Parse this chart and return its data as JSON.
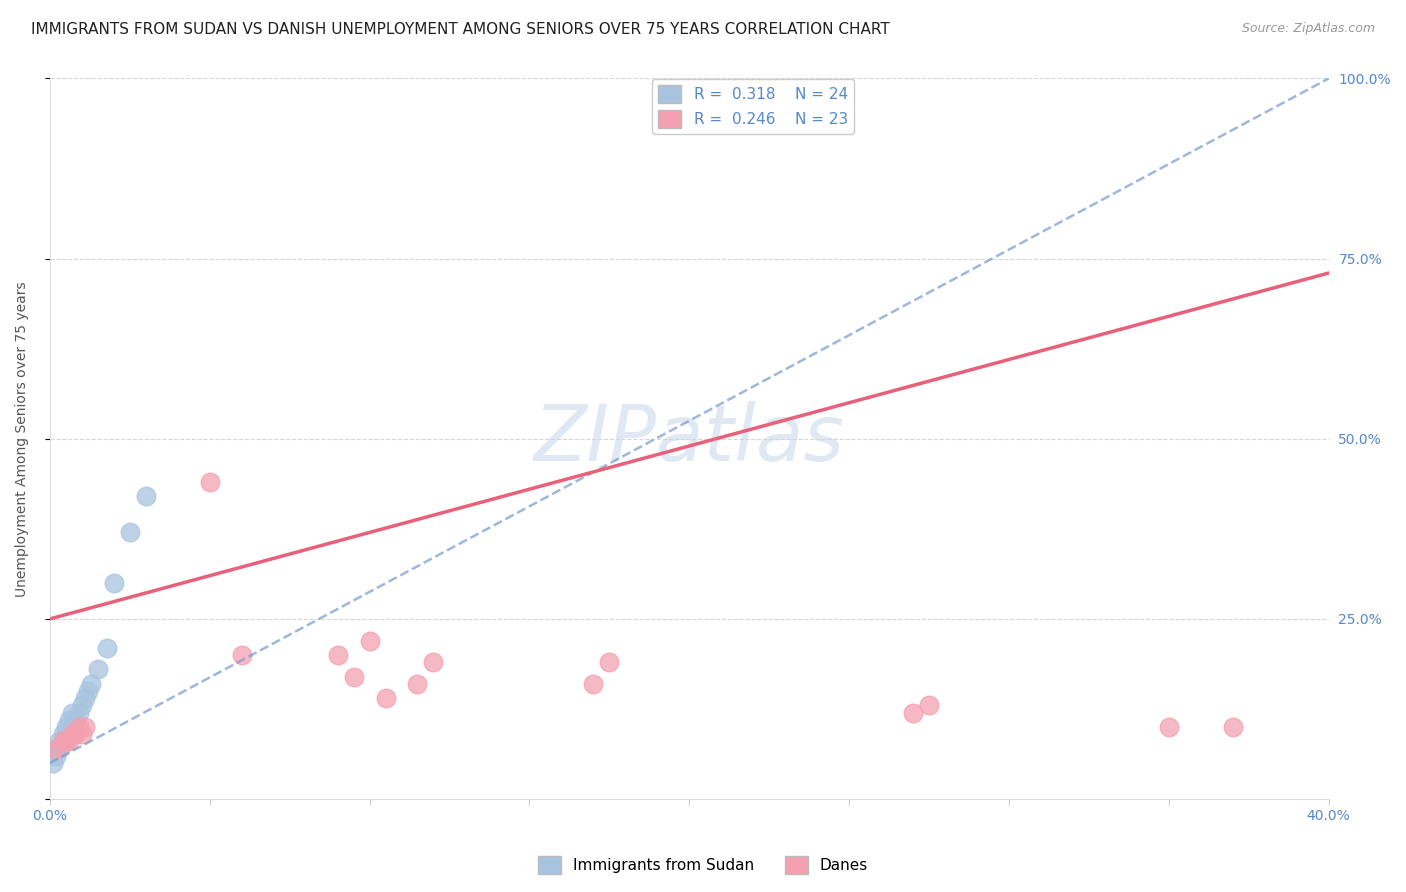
{
  "title": "IMMIGRANTS FROM SUDAN VS DANISH UNEMPLOYMENT AMONG SENIORS OVER 75 YEARS CORRELATION CHART",
  "source": "Source: ZipAtlas.com",
  "ylabel": "Unemployment Among Seniors over 75 years",
  "xlim": [
    0.0,
    0.4
  ],
  "ylim": [
    0.0,
    1.0
  ],
  "blue_R": "0.318",
  "blue_N": "24",
  "pink_R": "0.246",
  "pink_N": "23",
  "blue_color": "#a8c4e0",
  "pink_color": "#f4a0b0",
  "blue_line_color": "#7799cc",
  "pink_line_color": "#e8607a",
  "blue_line_style": "--",
  "pink_line_style": "-",
  "watermark_text": "ZIPatlas",
  "legend_label_blue": "Immigrants from Sudan",
  "legend_label_pink": "Danes",
  "blue_x": [
    0.001,
    0.002,
    0.002,
    0.003,
    0.003,
    0.004,
    0.004,
    0.005,
    0.005,
    0.006,
    0.006,
    0.007,
    0.007,
    0.008,
    0.009,
    0.01,
    0.011,
    0.012,
    0.013,
    0.015,
    0.018,
    0.02,
    0.025,
    0.03
  ],
  "blue_y": [
    0.05,
    0.06,
    0.07,
    0.07,
    0.08,
    0.08,
    0.09,
    0.08,
    0.1,
    0.09,
    0.11,
    0.1,
    0.12,
    0.11,
    0.12,
    0.13,
    0.14,
    0.15,
    0.16,
    0.18,
    0.21,
    0.3,
    0.37,
    0.42
  ],
  "pink_x": [
    0.002,
    0.004,
    0.005,
    0.006,
    0.007,
    0.008,
    0.009,
    0.01,
    0.011,
    0.05,
    0.06,
    0.09,
    0.095,
    0.1,
    0.105,
    0.115,
    0.12,
    0.17,
    0.175,
    0.27,
    0.275,
    0.35,
    0.37
  ],
  "pink_y": [
    0.07,
    0.08,
    0.08,
    0.08,
    0.09,
    0.09,
    0.1,
    0.09,
    0.1,
    0.44,
    0.2,
    0.2,
    0.17,
    0.22,
    0.14,
    0.16,
    0.19,
    0.16,
    0.19,
    0.12,
    0.13,
    0.1,
    0.1
  ],
  "blue_line_x0": 0.0,
  "blue_line_x1": 0.4,
  "blue_line_y0": 0.05,
  "blue_line_y1": 1.0,
  "pink_line_x0": 0.0,
  "pink_line_x1": 0.4,
  "pink_line_y0": 0.25,
  "pink_line_y1": 0.73,
  "grid_color": "#cccccc",
  "background_color": "#ffffff",
  "title_fontsize": 11,
  "axis_label_fontsize": 10,
  "tick_fontsize": 10,
  "legend_fontsize": 11,
  "marker_size": 180
}
